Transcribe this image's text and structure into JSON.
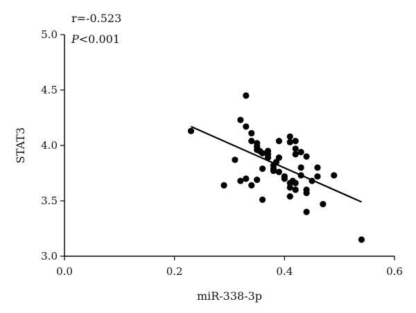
{
  "chart_data": {
    "type": "scatter",
    "title": "",
    "xlabel": "miR-338-3p",
    "ylabel": "STAT3",
    "xlim": [
      0.0,
      0.6
    ],
    "ylim": [
      3.0,
      5.0
    ],
    "xticks": [
      "0.0",
      "0.2",
      "0.4",
      "0.6"
    ],
    "yticks": [
      "3.0",
      "3.5",
      "4.0",
      "4.5",
      "5.0"
    ],
    "grid": false,
    "annotations": {
      "r_text": "r=-0.523",
      "p_symbol": "P",
      "p_rest": "<0.001"
    },
    "trendline": {
      "x": [
        0.23,
        0.54
      ],
      "y": [
        4.17,
        3.49
      ]
    },
    "series": [
      {
        "x": [
          0.23,
          0.29,
          0.31,
          0.32,
          0.32,
          0.33,
          0.33,
          0.33,
          0.34,
          0.34,
          0.34,
          0.35,
          0.35,
          0.35,
          0.35,
          0.355,
          0.36,
          0.36,
          0.36,
          0.37,
          0.37,
          0.37,
          0.38,
          0.38,
          0.38,
          0.385,
          0.39,
          0.39,
          0.39,
          0.4,
          0.4,
          0.41,
          0.41,
          0.41,
          0.41,
          0.41,
          0.415,
          0.42,
          0.42,
          0.42,
          0.42,
          0.42,
          0.43,
          0.43,
          0.43,
          0.44,
          0.44,
          0.44,
          0.44,
          0.45,
          0.46,
          0.46,
          0.47,
          0.49,
          0.54
        ],
        "y": [
          4.13,
          3.64,
          3.87,
          4.23,
          3.68,
          4.45,
          4.17,
          3.7,
          4.11,
          4.04,
          3.64,
          4.02,
          3.99,
          3.96,
          3.69,
          3.95,
          3.93,
          3.79,
          3.51,
          3.95,
          3.92,
          3.89,
          3.82,
          3.79,
          3.77,
          3.85,
          4.04,
          3.89,
          3.76,
          3.72,
          3.7,
          4.08,
          4.03,
          3.66,
          3.62,
          3.54,
          3.68,
          4.04,
          3.97,
          3.92,
          3.66,
          3.6,
          3.94,
          3.8,
          3.73,
          3.9,
          3.6,
          3.57,
          3.4,
          3.68,
          3.8,
          3.72,
          3.47,
          3.73,
          3.15
        ]
      }
    ],
    "colors": {
      "marker": "#000000",
      "line": "#000000",
      "axis": "#000000"
    }
  }
}
